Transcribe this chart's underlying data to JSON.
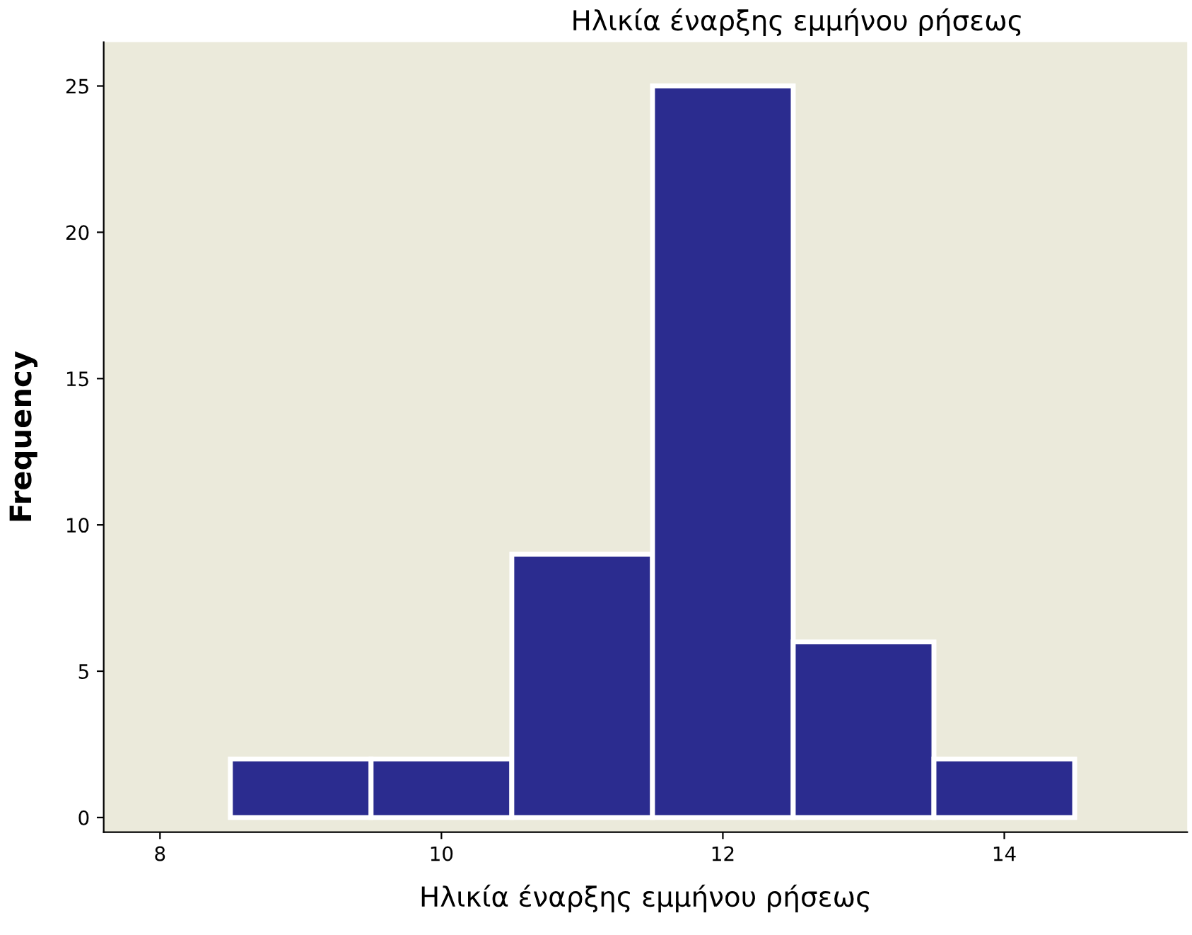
{
  "chart_data": {
    "type": "histogram",
    "title": "Ηλικία έναρξης εμμήνου ρήσεως",
    "xlabel": "Ηλικία έναρξης εμμήνου ρήσεως",
    "ylabel": "Frequency",
    "bins": [
      8.5,
      9.5,
      10.5,
      11.5,
      12.5,
      13.5,
      14.5
    ],
    "values": [
      2,
      2,
      9,
      25,
      6,
      2
    ],
    "color": "#2b2c8f",
    "xlim": [
      7.6,
      15.3
    ],
    "xticks": [
      8,
      10,
      12,
      14
    ],
    "ylim": [
      -0.5,
      26.5
    ],
    "yticks": [
      0,
      5,
      10,
      15,
      20,
      25
    ],
    "grid": false
  }
}
